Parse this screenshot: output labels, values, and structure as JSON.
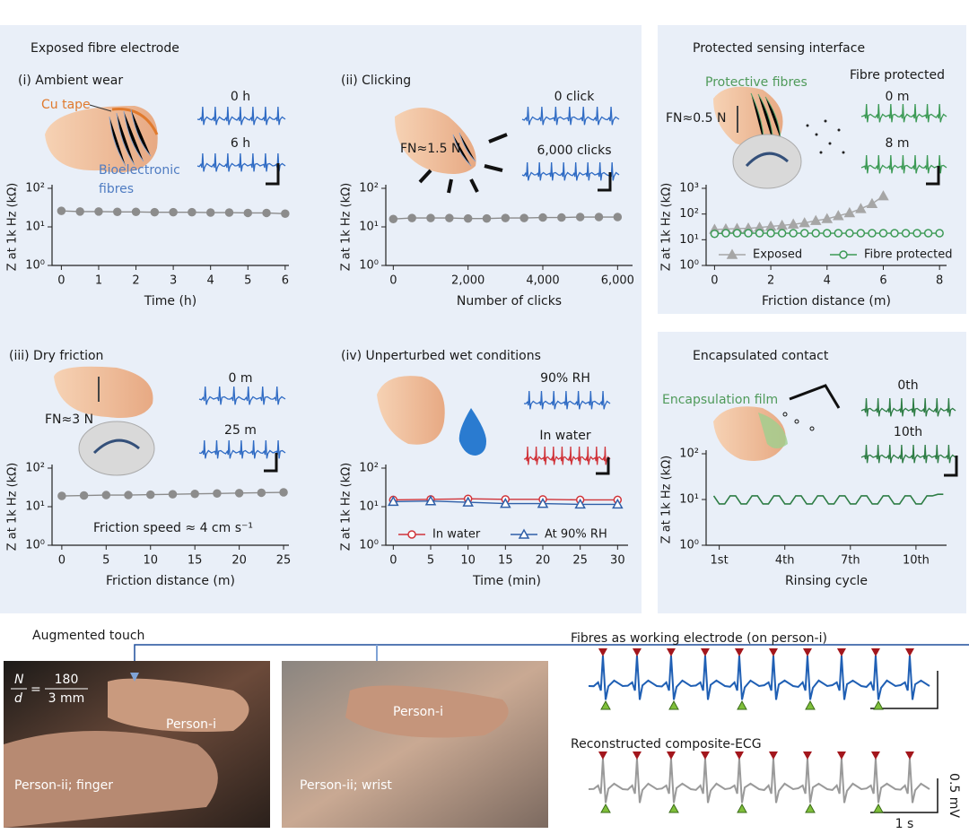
{
  "sections": {
    "exposed": "Exposed fibre electrode"
  },
  "chart_data": [
    {
      "type": "line",
      "title": "(i) Ambient wear",
      "xlabel": "Time (h)",
      "ylabel": "Z at 1k Hz (kΩ)",
      "annotations": [
        "Cu tape",
        "Bioelectronic",
        "fibres",
        "0 h",
        "6 h"
      ],
      "log_y": true,
      "xlim": [
        -0.25,
        6.1
      ],
      "ylim": [
        1,
        100
      ],
      "xticks": [
        0,
        1,
        2,
        3,
        4,
        5,
        6
      ],
      "yticks": [
        {
          "value": 1,
          "label": "10⁰"
        },
        {
          "value": 10,
          "label": "10¹"
        },
        {
          "value": 100,
          "label": "10²"
        }
      ],
      "x": [
        0,
        0.5,
        1,
        1.5,
        2,
        2.5,
        3,
        3.5,
        4,
        4.5,
        5,
        5.5,
        6
      ],
      "series": [
        {
          "color": "#8c8c8c",
          "marker": "circle",
          "marker_fill": "filled",
          "values": [
            26,
            25,
            25,
            24.5,
            24.5,
            24,
            24,
            24,
            23.5,
            23.5,
            23,
            23,
            22
          ]
        }
      ]
    },
    {
      "type": "line",
      "title": "(ii) Clicking",
      "xlabel": "Number of clicks",
      "ylabel": "Z at 1k Hz (kΩ)",
      "annotations": [
        "FN≈1.5 N",
        "0 click",
        "6,000 clicks"
      ],
      "log_y": true,
      "xlim": [
        -200,
        6400
      ],
      "ylim": [
        1,
        100
      ],
      "xticks": [
        0,
        {
          "value": 2000,
          "label": "2,000"
        },
        {
          "value": 4000,
          "label": "4,000"
        },
        {
          "value": 6000,
          "label": "6,000"
        }
      ],
      "yticks": [
        {
          "value": 1,
          "label": "10⁰"
        },
        {
          "value": 10,
          "label": "10¹"
        },
        {
          "value": 100,
          "label": "10²"
        }
      ],
      "x": [
        0,
        500,
        1000,
        1500,
        2000,
        2500,
        3000,
        3500,
        4000,
        4500,
        5000,
        5500,
        6000
      ],
      "series": [
        {
          "color": "#8c8c8c",
          "marker": "circle",
          "marker_fill": "filled",
          "values": [
            16,
            17,
            17,
            17,
            16.5,
            16.5,
            17,
            17,
            17.5,
            17.5,
            18,
            18,
            18
          ]
        }
      ]
    },
    {
      "type": "line",
      "title": "(iii) Dry friction",
      "xlabel": "Friction distance (m)",
      "ylabel": "Z at 1k Hz (kΩ)",
      "annotations": [
        "FN≈3 N",
        "0 m",
        "25 m",
        "Friction speed ≈ 4 cm s⁻¹"
      ],
      "log_y": true,
      "xlim": [
        -1.1,
        25.6
      ],
      "ylim": [
        1,
        100
      ],
      "xticks": [
        0,
        5,
        10,
        15,
        20,
        25
      ],
      "yticks": [
        {
          "value": 1,
          "label": "10⁰"
        },
        {
          "value": 10,
          "label": "10¹"
        },
        {
          "value": 100,
          "label": "10²"
        }
      ],
      "x": [
        0,
        2.5,
        5,
        7.5,
        10,
        12.5,
        15,
        17.5,
        20,
        22.5,
        25
      ],
      "series": [
        {
          "color": "#8c8c8c",
          "marker": "circle",
          "marker_fill": "filled",
          "values": [
            19,
            19.5,
            20,
            20,
            20.5,
            21,
            21.5,
            22,
            22.5,
            23,
            23.5
          ]
        }
      ]
    },
    {
      "type": "line",
      "title": "(iv) Unperturbed wet conditions",
      "xlabel": "Time (min)",
      "ylabel": "Z at 1k Hz (kΩ)",
      "annotations": [
        "90% RH",
        "In water"
      ],
      "log_y": true,
      "xlim": [
        -1,
        31.4
      ],
      "ylim": [
        1,
        100
      ],
      "legend": "bottom",
      "xticks": [
        0,
        5,
        10,
        15,
        20,
        25,
        30
      ],
      "yticks": [
        {
          "value": 1,
          "label": "10⁰"
        },
        {
          "value": 10,
          "label": "10¹"
        },
        {
          "value": 100,
          "label": "10²"
        }
      ],
      "x": [
        0,
        5,
        10,
        15,
        20,
        25,
        30
      ],
      "series": [
        {
          "name": "In water",
          "color": "#d0343a",
          "marker": "circle",
          "marker_fill": "open",
          "values": [
            15,
            15.5,
            16,
            15.5,
            15.5,
            15,
            15
          ]
        },
        {
          "name": "At 90% RH",
          "color": "#2f5fa8",
          "marker": "triangle",
          "marker_fill": "open",
          "values": [
            13.5,
            14,
            13,
            12,
            12,
            11.5,
            11.5
          ]
        }
      ]
    },
    {
      "type": "line",
      "title": "Protected sensing interface",
      "xlabel": "Friction distance (m)",
      "ylabel": "Z at 1k Hz (kΩ)",
      "annotations": [
        "Protective fibres",
        "Fibre protected",
        "FN≈0.5 N",
        "0 m",
        "8 m"
      ],
      "log_y": true,
      "xlim": [
        -0.3,
        8.25
      ],
      "ylim": [
        1,
        1000
      ],
      "legend": "bottom",
      "xticks": [
        0,
        2,
        4,
        6,
        8
      ],
      "yticks": [
        {
          "value": 1,
          "label": "10⁰"
        },
        {
          "value": 10,
          "label": "10¹"
        },
        {
          "value": 100,
          "label": "10²"
        },
        {
          "value": 1000,
          "label": "10³"
        }
      ],
      "series": [
        {
          "name": "Exposed",
          "color": "#a6a6a6",
          "marker": "triangle",
          "marker_fill": "filled",
          "x": [
            0,
            0.4,
            0.8,
            1.2,
            1.6,
            2.0,
            2.4,
            2.8,
            3.2,
            3.6,
            4.0,
            4.4,
            4.8,
            5.2,
            5.6,
            6.0
          ],
          "values": [
            25,
            26,
            27,
            28,
            30,
            33,
            36,
            40,
            45,
            55,
            65,
            85,
            110,
            160,
            250,
            500
          ]
        },
        {
          "name": "Fibre protected",
          "color": "#3c9a55",
          "marker": "circle",
          "marker_fill": "open",
          "x": [
            0,
            0.4,
            0.8,
            1.2,
            1.6,
            2.0,
            2.4,
            2.8,
            3.2,
            3.6,
            4.0,
            4.4,
            4.8,
            5.2,
            5.6,
            6.0,
            6.4,
            6.8,
            7.2,
            7.6,
            8.0
          ],
          "values": [
            17,
            18,
            18,
            18,
            18,
            18,
            18,
            18,
            18,
            18,
            18,
            18,
            18,
            18,
            18,
            18,
            18,
            18,
            18,
            18,
            18
          ]
        }
      ]
    },
    {
      "type": "line",
      "title": "Encapsulated contact",
      "xlabel": "Rinsing cycle",
      "ylabel": "Z at 1k Hz (kΩ)",
      "annotations": [
        "Encapsulation film",
        "0th",
        "10th"
      ],
      "log_y": true,
      "xlim": [
        0.4,
        11.4
      ],
      "ylim": [
        1,
        100
      ],
      "xticks": [
        {
          "value": 1,
          "label": "1st"
        },
        {
          "value": 4,
          "label": "4th"
        },
        {
          "value": 7,
          "label": "7th"
        },
        {
          "value": 10,
          "label": "10th"
        }
      ],
      "yticks": [
        {
          "value": 1,
          "label": "10⁰"
        },
        {
          "value": 10,
          "label": "10¹"
        },
        {
          "value": 100,
          "label": "10²"
        }
      ],
      "x": [
        0.75,
        1,
        1.25,
        1.5,
        1.75,
        2,
        2.25,
        2.5,
        2.75,
        3,
        3.25,
        3.5,
        3.75,
        4,
        4.25,
        4.5,
        4.75,
        5,
        5.25,
        5.5,
        5.75,
        6,
        6.25,
        6.5,
        6.75,
        7,
        7.25,
        7.5,
        7.75,
        8,
        8.25,
        8.5,
        8.75,
        9,
        9.25,
        9.5,
        9.75,
        10,
        10.25,
        10.5,
        10.75,
        11,
        11.25
      ],
      "series": [
        {
          "color": "#2e7d45",
          "marker": "none",
          "values": [
            12,
            8,
            8,
            12,
            12,
            8,
            8,
            12,
            12,
            8,
            8,
            12,
            12,
            8,
            8,
            12,
            12,
            8,
            8,
            12,
            12,
            8,
            8,
            12,
            12,
            8,
            8,
            12,
            12,
            8,
            8,
            12,
            12,
            8,
            8,
            12,
            12,
            8,
            8,
            12,
            12,
            13,
            13
          ]
        }
      ]
    }
  ],
  "augmented_touch": {
    "title": "Augmented touch",
    "n": "N",
    "d": "d",
    "eq": "=",
    "ratio_top": "180",
    "ratio_bottom": "3 mm",
    "photo_labels": [
      "Person-i",
      "Person-ii; finger",
      "Person-i",
      "Person-ii; wrist"
    ]
  },
  "ecg": {
    "titles": [
      "Fibres as working electrode (on person-i)",
      "Reconstructed composite-ECG"
    ],
    "scale_y": "0.5 mV",
    "scale_x": "1 s"
  }
}
